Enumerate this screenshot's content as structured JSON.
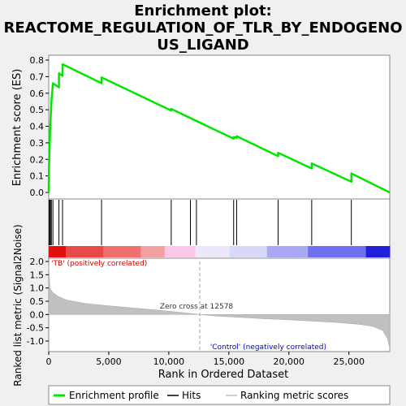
{
  "chart_data": {
    "type": "line",
    "title_line1": "Enrichment plot:",
    "title_line2": "REACTOME_REGULATION_OF_TLR_BY_ENDOGENO",
    "title_line3": "US_LIGAND",
    "es_ylabel": "Enrichment score (ES)",
    "metric_ylabel": "Ranked list metric (Signal2Noise)",
    "xlabel": "Rank in Ordered Dataset",
    "x_ticks": [
      "0",
      "5,000",
      "10,000",
      "15,000",
      "20,000",
      "25,000"
    ],
    "x_tick_values": [
      0,
      5000,
      10000,
      15000,
      20000,
      25000
    ],
    "x_max": 28400,
    "es_ylim": [
      0,
      0.8
    ],
    "es_ticks": [
      "0.0",
      "0.1",
      "0.2",
      "0.3",
      "0.4",
      "0.5",
      "0.6",
      "0.7",
      "0.8"
    ],
    "metric_ylim": [
      -1.0,
      2.0
    ],
    "metric_ticks": [
      "2.0",
      "1.5",
      "1.0",
      "0.5",
      "0.0",
      "-0.5",
      "-1.0"
    ],
    "positive_label": "'TB' (positively correlated)",
    "negative_label": "'Control' (negatively correlated)",
    "zero_cross_label": "Zero cross at 12578",
    "zero_cross": 12578,
    "hits": [
      30,
      80,
      150,
      220,
      350,
      850,
      1150,
      4400,
      10200,
      11800,
      12300,
      15400,
      15650,
      19100,
      21900,
      25200
    ],
    "es_points": [
      [
        0,
        0.0
      ],
      [
        30,
        0.16
      ],
      [
        80,
        0.3
      ],
      [
        150,
        0.43
      ],
      [
        220,
        0.55
      ],
      [
        350,
        0.66
      ],
      [
        850,
        0.635
      ],
      [
        850,
        0.72
      ],
      [
        1150,
        0.705
      ],
      [
        1150,
        0.775
      ],
      [
        4400,
        0.66
      ],
      [
        4400,
        0.695
      ],
      [
        10200,
        0.495
      ],
      [
        10200,
        0.505
      ],
      [
        15400,
        0.325
      ],
      [
        15400,
        0.335
      ],
      [
        15650,
        0.33
      ],
      [
        15650,
        0.34
      ],
      [
        19100,
        0.22
      ],
      [
        19100,
        0.24
      ],
      [
        21900,
        0.145
      ],
      [
        21900,
        0.175
      ],
      [
        25200,
        0.065
      ],
      [
        25200,
        0.115
      ],
      [
        28400,
        0.0
      ]
    ],
    "metric_curve": [
      [
        0,
        1.85
      ],
      [
        100,
        1.0
      ],
      [
        300,
        0.85
      ],
      [
        800,
        0.68
      ],
      [
        1500,
        0.55
      ],
      [
        3000,
        0.42
      ],
      [
        5000,
        0.33
      ],
      [
        7000,
        0.25
      ],
      [
        9000,
        0.17
      ],
      [
        11000,
        0.08
      ],
      [
        12578,
        0.0
      ],
      [
        14000,
        -0.06
      ],
      [
        16000,
        -0.11
      ],
      [
        18000,
        -0.16
      ],
      [
        20000,
        -0.2
      ],
      [
        22000,
        -0.25
      ],
      [
        24000,
        -0.3
      ],
      [
        26000,
        -0.38
      ],
      [
        27000,
        -0.45
      ],
      [
        27800,
        -0.6
      ],
      [
        28200,
        -0.9
      ],
      [
        28400,
        -1.28
      ]
    ],
    "colors": {
      "es_line": "#00e600",
      "metric_fill": "#c0c0c0",
      "positive_text": "#d00000",
      "negative_text": "#0000cc",
      "zero_cross_line": "#a0a0a0"
    },
    "legend": [
      {
        "label": "Enrichment profile",
        "color": "#00e600"
      },
      {
        "label": "Hits",
        "color": "#000000"
      },
      {
        "label": "Ranking metric scores",
        "color": "#c0c0c0"
      }
    ]
  }
}
